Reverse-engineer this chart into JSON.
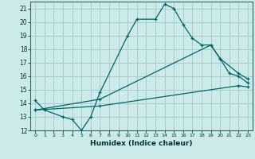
{
  "xlabel": "Humidex (Indice chaleur)",
  "bg_color": "#cceaea",
  "grid_color": "#aacccc",
  "line_color": "#006666",
  "xlim": [
    -0.5,
    23.5
  ],
  "ylim": [
    12,
    21.5
  ],
  "xticks": [
    0,
    1,
    2,
    3,
    4,
    5,
    6,
    7,
    8,
    9,
    10,
    11,
    12,
    13,
    14,
    15,
    16,
    17,
    18,
    19,
    20,
    21,
    22,
    23
  ],
  "yticks": [
    12,
    13,
    14,
    15,
    16,
    17,
    18,
    19,
    20,
    21
  ],
  "line1": {
    "x": [
      0,
      1,
      3,
      4,
      5,
      6,
      7,
      10,
      11,
      13,
      14,
      15,
      16,
      17,
      18,
      19,
      20,
      21,
      22,
      23
    ],
    "y": [
      14.2,
      13.5,
      13.0,
      12.8,
      12.0,
      13.0,
      14.8,
      19.0,
      20.2,
      20.2,
      21.3,
      21.0,
      19.8,
      18.8,
      18.3,
      18.3,
      17.3,
      16.2,
      16.0,
      15.5
    ]
  },
  "line2": {
    "x": [
      0,
      7,
      19,
      20,
      22,
      23
    ],
    "y": [
      13.5,
      14.3,
      18.3,
      17.3,
      16.2,
      15.8
    ]
  },
  "line3": {
    "x": [
      0,
      7,
      22,
      23
    ],
    "y": [
      13.5,
      13.8,
      15.3,
      15.2
    ]
  }
}
